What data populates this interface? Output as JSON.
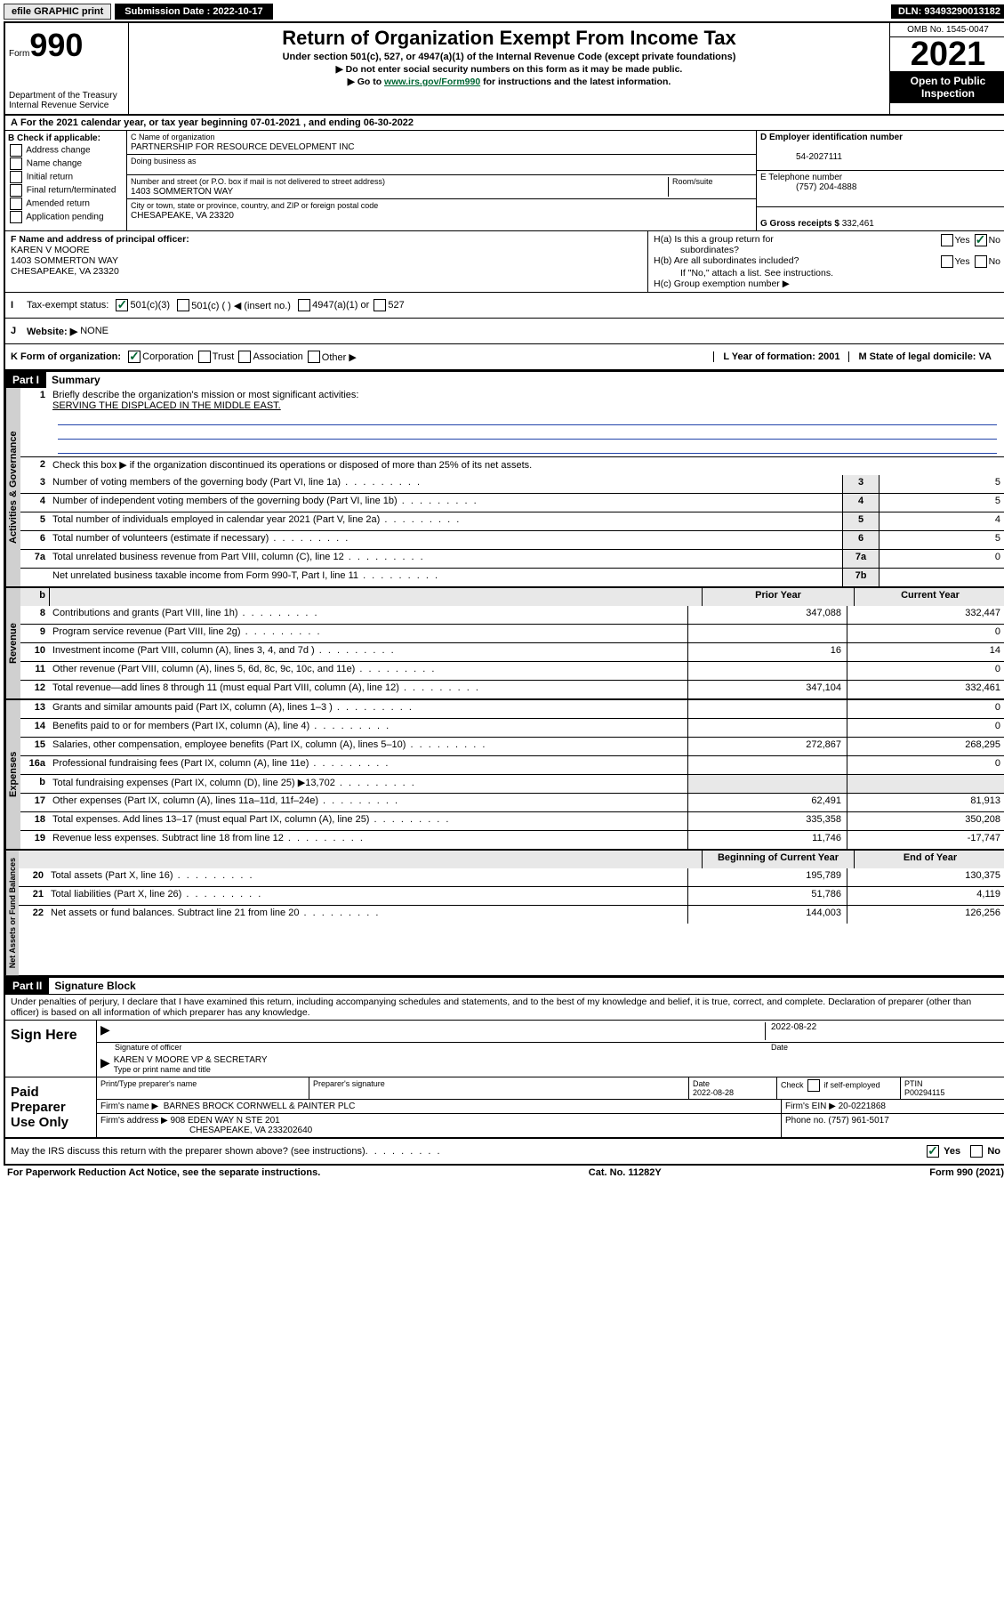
{
  "topbar": {
    "efile": "efile GRAPHIC print",
    "submission_label": "Submission Date : 2022-10-17",
    "dln": "DLN: 93493290013182"
  },
  "header": {
    "form_word": "Form",
    "form_num": "990",
    "dept": "Department of the Treasury",
    "irs": "Internal Revenue Service",
    "title": "Return of Organization Exempt From Income Tax",
    "sub1": "Under section 501(c), 527, or 4947(a)(1) of the Internal Revenue Code (except private foundations)",
    "sub2": "▶ Do not enter social security numbers on this form as it may be made public.",
    "sub3_pre": "▶ Go to ",
    "sub3_link": "www.irs.gov/Form990",
    "sub3_post": " for instructions and the latest information.",
    "omb": "OMB No. 1545-0047",
    "year": "2021",
    "inspection1": "Open to Public",
    "inspection2": "Inspection"
  },
  "lineA": "For the 2021 calendar year, or tax year beginning 07-01-2021    , and ending 06-30-2022",
  "boxB": {
    "label": "B Check if applicable:",
    "opts": [
      "Address change",
      "Name change",
      "Initial return",
      "Final return/terminated",
      "Amended return",
      "Application pending"
    ]
  },
  "boxC": {
    "name_label": "C Name of organization",
    "name": "PARTNERSHIP FOR RESOURCE DEVELOPMENT INC",
    "dba_label": "Doing business as",
    "street_label": "Number and street (or P.O. box if mail is not delivered to street address)",
    "room_label": "Room/suite",
    "street": "1403 SOMMERTON WAY",
    "city_label": "City or town, state or province, country, and ZIP or foreign postal code",
    "city": "CHESAPEAKE, VA  23320"
  },
  "boxD": {
    "label": "D Employer identification number",
    "ein": "54-2027111"
  },
  "boxE": {
    "label": "E Telephone number",
    "phone": "(757) 204-4888"
  },
  "boxG": {
    "label": "G Gross receipts $",
    "amount": "332,461"
  },
  "boxF": {
    "label": "F Name and address of principal officer:",
    "name": "KAREN V MOORE",
    "addr1": "1403 SOMMERTON WAY",
    "addr2": "CHESAPEAKE, VA  23320"
  },
  "boxH": {
    "a": "H(a)  Is this a group return for",
    "a2": "subordinates?",
    "b": "H(b)  Are all subordinates included?",
    "note": "If \"No,\" attach a list. See instructions.",
    "c": "H(c)  Group exemption number ▶",
    "yes": "Yes",
    "no": "No"
  },
  "lineI": {
    "label": "Tax-exempt status:",
    "o1": "501(c)(3)",
    "o2": "501(c) (   ) ◀ (insert no.)",
    "o3": "4947(a)(1) or",
    "o4": "527"
  },
  "lineJ": {
    "label": "Website: ▶",
    "val": "NONE"
  },
  "lineK": {
    "label": "K Form of organization:",
    "o1": "Corporation",
    "o2": "Trust",
    "o3": "Association",
    "o4": "Other ▶"
  },
  "lineL": {
    "label": "L Year of formation: 2001"
  },
  "lineM": {
    "label": "M State of legal domicile: VA"
  },
  "part1": {
    "header": "Part I",
    "title": "Summary",
    "q1": "Briefly describe the organization's mission or most significant activities:",
    "mission": "SERVING THE DISPLACED IN THE MIDDLE EAST.",
    "q2": "Check this box ▶         if the organization discontinued its operations or disposed of more than 25% of its net assets.",
    "tab_gov": "Activities & Governance",
    "tab_rev": "Revenue",
    "tab_exp": "Expenses",
    "tab_net": "Net Assets or Fund Balances",
    "rows_gov": [
      {
        "n": "3",
        "t": "Number of voting members of the governing body (Part VI, line 1a)",
        "k": "3",
        "v": "5"
      },
      {
        "n": "4",
        "t": "Number of independent voting members of the governing body (Part VI, line 1b)",
        "k": "4",
        "v": "5"
      },
      {
        "n": "5",
        "t": "Total number of individuals employed in calendar year 2021 (Part V, line 2a)",
        "k": "5",
        "v": "4"
      },
      {
        "n": "6",
        "t": "Total number of volunteers (estimate if necessary)",
        "k": "6",
        "v": "5"
      },
      {
        "n": "7a",
        "t": "Total unrelated business revenue from Part VIII, column (C), line 12",
        "k": "7a",
        "v": "0"
      },
      {
        "n": "",
        "t": "Net unrelated business taxable income from Form 990-T, Part I, line 11",
        "k": "7b",
        "v": ""
      }
    ],
    "col_prior": "Prior Year",
    "col_current": "Current Year",
    "rows_rev": [
      {
        "n": "8",
        "t": "Contributions and grants (Part VIII, line 1h)",
        "p": "347,088",
        "c": "332,447"
      },
      {
        "n": "9",
        "t": "Program service revenue (Part VIII, line 2g)",
        "p": "",
        "c": "0"
      },
      {
        "n": "10",
        "t": "Investment income (Part VIII, column (A), lines 3, 4, and 7d )",
        "p": "16",
        "c": "14"
      },
      {
        "n": "11",
        "t": "Other revenue (Part VIII, column (A), lines 5, 6d, 8c, 9c, 10c, and 11e)",
        "p": "",
        "c": "0"
      },
      {
        "n": "12",
        "t": "Total revenue—add lines 8 through 11 (must equal Part VIII, column (A), line 12)",
        "p": "347,104",
        "c": "332,461"
      }
    ],
    "rows_exp": [
      {
        "n": "13",
        "t": "Grants and similar amounts paid (Part IX, column (A), lines 1–3 )",
        "p": "",
        "c": "0"
      },
      {
        "n": "14",
        "t": "Benefits paid to or for members (Part IX, column (A), line 4)",
        "p": "",
        "c": "0"
      },
      {
        "n": "15",
        "t": "Salaries, other compensation, employee benefits (Part IX, column (A), lines 5–10)",
        "p": "272,867",
        "c": "268,295"
      },
      {
        "n": "16a",
        "t": "Professional fundraising fees (Part IX, column (A), line 11e)",
        "p": "",
        "c": "0"
      },
      {
        "n": "b",
        "t": "Total fundraising expenses (Part IX, column (D), line 25) ▶13,702",
        "p": "SHADE",
        "c": "SHADE"
      },
      {
        "n": "17",
        "t": "Other expenses (Part IX, column (A), lines 11a–11d, 11f–24e)",
        "p": "62,491",
        "c": "81,913"
      },
      {
        "n": "18",
        "t": "Total expenses. Add lines 13–17 (must equal Part IX, column (A), line 25)",
        "p": "335,358",
        "c": "350,208"
      },
      {
        "n": "19",
        "t": "Revenue less expenses. Subtract line 18 from line 12",
        "p": "11,746",
        "c": "-17,747"
      }
    ],
    "col_begin": "Beginning of Current Year",
    "col_end": "End of Year",
    "rows_net": [
      {
        "n": "20",
        "t": "Total assets (Part X, line 16)",
        "p": "195,789",
        "c": "130,375"
      },
      {
        "n": "21",
        "t": "Total liabilities (Part X, line 26)",
        "p": "51,786",
        "c": "4,119"
      },
      {
        "n": "22",
        "t": "Net assets or fund balances. Subtract line 21 from line 20",
        "p": "144,003",
        "c": "126,256"
      }
    ]
  },
  "part2": {
    "header": "Part II",
    "title": "Signature Block",
    "decl": "Under penalties of perjury, I declare that I have examined this return, including accompanying schedules and statements, and to the best of my knowledge and belief, it is true, correct, and complete. Declaration of preparer (other than officer) is based on all information of which preparer has any knowledge.",
    "sign_here": "Sign Here",
    "sig_officer": "Signature of officer",
    "sig_date": "2022-08-22",
    "date_label": "Date",
    "officer_name": "KAREN V MOORE  VP & SECRETARY",
    "type_label": "Type or print name and title",
    "paid": "Paid Preparer Use Only",
    "prep_name_label": "Print/Type preparer's name",
    "prep_sig_label": "Preparer's signature",
    "prep_date_label": "Date",
    "prep_date": "2022-08-28",
    "check_label": "Check",
    "self_emp": "if self-employed",
    "ptin_label": "PTIN",
    "ptin": "P00294115",
    "firm_name_label": "Firm's name      ▶",
    "firm_name": "BARNES BROCK CORNWELL & PAINTER PLC",
    "firm_ein_label": "Firm's EIN ▶",
    "firm_ein": "20-0221868",
    "firm_addr_label": "Firm's address ▶",
    "firm_addr1": "908 EDEN WAY N STE 201",
    "firm_addr2": "CHESAPEAKE, VA  233202640",
    "firm_phone_label": "Phone no.",
    "firm_phone": "(757) 961-5017",
    "discuss": "May the IRS discuss this return with the preparer shown above? (see instructions)",
    "yes": "Yes",
    "no": "No"
  },
  "footer": {
    "left": "For Paperwork Reduction Act Notice, see the separate instructions.",
    "mid": "Cat. No. 11282Y",
    "right": "Form 990 (2021)"
  }
}
